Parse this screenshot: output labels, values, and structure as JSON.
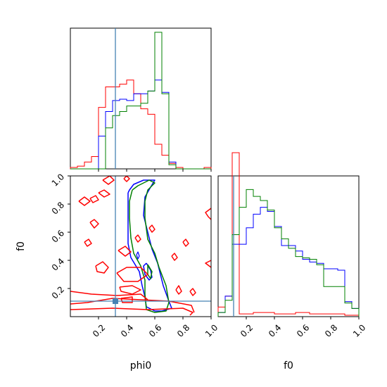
{
  "chart_data": {
    "type": "corner",
    "parameters": [
      "phi0",
      "f0"
    ],
    "truth": {
      "phi0": 0.32,
      "f0": 0.11,
      "color": "#4682b4"
    },
    "series_colors": {
      "red": "#ff0000",
      "blue": "#0000ff",
      "green": "#008000"
    },
    "hist_phi0": {
      "bin_edges": [
        0.0,
        0.05,
        0.1,
        0.15,
        0.2,
        0.25,
        0.3,
        0.35,
        0.4,
        0.45,
        0.5,
        0.55,
        0.6,
        0.65,
        0.7,
        0.75,
        0.8,
        0.85,
        0.9,
        0.95,
        1.0
      ],
      "series": [
        {
          "color": "red",
          "counts": [
            0.01,
            0.02,
            0.05,
            0.09,
            0.45,
            0.6,
            0.6,
            0.62,
            0.65,
            0.55,
            0.44,
            0.4,
            0.18,
            0.1,
            0.04,
            0.01,
            0.0,
            0.0,
            0.0,
            0.01
          ]
        },
        {
          "color": "blue",
          "counts": [
            0,
            0,
            0,
            0,
            0.24,
            0.42,
            0.5,
            0.51,
            0.5,
            0.55,
            0.55,
            0.57,
            0.65,
            0.56,
            0.05,
            0,
            0,
            0,
            0,
            0
          ]
        },
        {
          "color": "green",
          "counts": [
            0,
            0,
            0,
            0,
            0,
            0.3,
            0.39,
            0.42,
            0.46,
            0.46,
            0.48,
            0.57,
            1.0,
            0.55,
            0.03,
            0,
            0,
            0,
            0,
            0
          ]
        }
      ]
    },
    "hist_f0": {
      "bin_edges": [
        0.0,
        0.05,
        0.1,
        0.15,
        0.2,
        0.25,
        0.3,
        0.35,
        0.4,
        0.45,
        0.5,
        0.55,
        0.6,
        0.65,
        0.7,
        0.75,
        0.8,
        0.85,
        0.9,
        0.95,
        1.0
      ],
      "series": [
        {
          "color": "red",
          "counts": [
            0.07,
            0.15,
            1.2,
            0.02,
            0.02,
            0.03,
            0.03,
            0.03,
            0.02,
            0.02,
            0.02,
            0.03,
            0.03,
            0.02,
            0.02,
            0.02,
            0.02,
            0.02,
            0.01,
            0.01
          ]
        },
        {
          "color": "blue",
          "counts": [
            0.03,
            0.15,
            0.53,
            0.53,
            0.65,
            0.75,
            0.8,
            0.77,
            0.66,
            0.52,
            0.52,
            0.48,
            0.42,
            0.4,
            0.39,
            0.35,
            0.35,
            0.34,
            0.11,
            0.06
          ]
        },
        {
          "color": "green",
          "counts": [
            0.03,
            0.12,
            0.6,
            0.8,
            0.93,
            0.88,
            0.85,
            0.78,
            0.65,
            0.57,
            0.5,
            0.44,
            0.43,
            0.42,
            0.38,
            0.22,
            0.22,
            0.22,
            0.1,
            0.06
          ]
        }
      ]
    },
    "contours": [
      {
        "color": "blue",
        "width": 1.5,
        "points": [
          [
            0.41,
            0.88
          ],
          [
            0.42,
            0.9
          ],
          [
            0.45,
            0.94
          ],
          [
            0.52,
            0.97
          ],
          [
            0.6,
            0.97
          ],
          [
            0.57,
            0.92
          ],
          [
            0.53,
            0.85
          ],
          [
            0.52,
            0.72
          ],
          [
            0.55,
            0.6
          ],
          [
            0.58,
            0.48
          ],
          [
            0.62,
            0.38
          ],
          [
            0.66,
            0.22
          ],
          [
            0.7,
            0.11
          ],
          [
            0.72,
            0.06
          ],
          [
            0.65,
            0.04
          ],
          [
            0.6,
            0.04
          ],
          [
            0.54,
            0.07
          ],
          [
            0.53,
            0.14
          ],
          [
            0.51,
            0.22
          ],
          [
            0.49,
            0.32
          ],
          [
            0.43,
            0.42
          ],
          [
            0.41,
            0.52
          ],
          [
            0.41,
            0.65
          ],
          [
            0.41,
            0.78
          ],
          [
            0.41,
            0.88
          ]
        ]
      },
      {
        "color": "green",
        "width": 1.5,
        "points": [
          [
            0.44,
            0.9
          ],
          [
            0.48,
            0.93
          ],
          [
            0.56,
            0.97
          ],
          [
            0.6,
            0.95
          ],
          [
            0.55,
            0.9
          ],
          [
            0.53,
            0.82
          ],
          [
            0.53,
            0.7
          ],
          [
            0.55,
            0.55
          ],
          [
            0.6,
            0.45
          ],
          [
            0.63,
            0.35
          ],
          [
            0.68,
            0.22
          ],
          [
            0.7,
            0.1
          ],
          [
            0.68,
            0.04
          ],
          [
            0.6,
            0.03
          ],
          [
            0.54,
            0.05
          ],
          [
            0.53,
            0.16
          ],
          [
            0.53,
            0.26
          ],
          [
            0.5,
            0.36
          ],
          [
            0.45,
            0.45
          ],
          [
            0.43,
            0.56
          ],
          [
            0.42,
            0.7
          ],
          [
            0.42,
            0.82
          ],
          [
            0.44,
            0.9
          ]
        ]
      },
      {
        "color": "blue",
        "width": 1.5,
        "points": [
          [
            0.54,
            0.38
          ],
          [
            0.57,
            0.33
          ],
          [
            0.58,
            0.28
          ],
          [
            0.56,
            0.26
          ],
          [
            0.53,
            0.3
          ],
          [
            0.52,
            0.36
          ],
          [
            0.54,
            0.38
          ]
        ]
      },
      {
        "color": "green",
        "width": 1.5,
        "points": [
          [
            0.55,
            0.37
          ],
          [
            0.58,
            0.32
          ],
          [
            0.57,
            0.27
          ],
          [
            0.55,
            0.3
          ],
          [
            0.55,
            0.37
          ]
        ]
      },
      {
        "color": "red",
        "width": 1.5,
        "points": [
          [
            0.0,
            0.05
          ],
          [
            0.3,
            0.06
          ],
          [
            0.55,
            0.05
          ],
          [
            0.8,
            0.06
          ],
          [
            0.87,
            0.03
          ],
          [
            0.85,
            0.01
          ]
        ]
      },
      {
        "color": "red",
        "width": 1.5,
        "points": [
          [
            0.0,
            0.09
          ],
          [
            0.12,
            0.1
          ],
          [
            0.3,
            0.13
          ],
          [
            0.5,
            0.12
          ],
          [
            0.7,
            0.11
          ],
          [
            0.86,
            0.08
          ],
          [
            0.88,
            0.03
          ]
        ]
      },
      {
        "color": "red",
        "width": 1.5,
        "points": [
          [
            0.0,
            0.18
          ],
          [
            0.15,
            0.16
          ],
          [
            0.33,
            0.15
          ],
          [
            0.5,
            0.16
          ],
          [
            0.55,
            0.12
          ]
        ]
      },
      {
        "color": "red",
        "width": 1.5,
        "points": [
          [
            0.33,
            0.31
          ],
          [
            0.4,
            0.35
          ],
          [
            0.5,
            0.35
          ],
          [
            0.55,
            0.3
          ],
          [
            0.48,
            0.25
          ],
          [
            0.38,
            0.25
          ],
          [
            0.33,
            0.31
          ]
        ]
      },
      {
        "color": "red",
        "width": 1.5,
        "points": [
          [
            0.35,
            0.21
          ],
          [
            0.44,
            0.22
          ],
          [
            0.5,
            0.19
          ],
          [
            0.44,
            0.16
          ],
          [
            0.36,
            0.18
          ],
          [
            0.35,
            0.21
          ]
        ]
      },
      {
        "color": "red",
        "width": 1.5,
        "points": [
          [
            0.36,
            0.13
          ],
          [
            0.44,
            0.14
          ],
          [
            0.44,
            0.1
          ],
          [
            0.37,
            0.1
          ],
          [
            0.36,
            0.13
          ]
        ]
      },
      {
        "color": "red",
        "width": 1.5,
        "points": [
          [
            0.18,
            0.36
          ],
          [
            0.23,
            0.39
          ],
          [
            0.27,
            0.35
          ],
          [
            0.24,
            0.31
          ],
          [
            0.19,
            0.32
          ],
          [
            0.18,
            0.36
          ]
        ]
      },
      {
        "color": "red",
        "width": 1.5,
        "points": [
          [
            0.34,
            0.47
          ],
          [
            0.39,
            0.5
          ],
          [
            0.43,
            0.46
          ],
          [
            0.39,
            0.43
          ],
          [
            0.34,
            0.47
          ]
        ]
      },
      {
        "color": "red",
        "width": 1.5,
        "points": [
          [
            0.14,
            0.67
          ],
          [
            0.17,
            0.69
          ],
          [
            0.2,
            0.66
          ],
          [
            0.17,
            0.63
          ],
          [
            0.14,
            0.67
          ]
        ]
      },
      {
        "color": "red",
        "width": 1.5,
        "points": [
          [
            0.06,
            0.82
          ],
          [
            0.1,
            0.85
          ],
          [
            0.14,
            0.82
          ],
          [
            0.1,
            0.79
          ],
          [
            0.06,
            0.82
          ]
        ]
      },
      {
        "color": "red",
        "width": 1.5,
        "points": [
          [
            0.14,
            0.84
          ],
          [
            0.18,
            0.86
          ],
          [
            0.2,
            0.83
          ],
          [
            0.16,
            0.81
          ],
          [
            0.14,
            0.84
          ]
        ]
      },
      {
        "color": "red",
        "width": 1.5,
        "points": [
          [
            0.2,
            0.88
          ],
          [
            0.24,
            0.9
          ],
          [
            0.28,
            0.87
          ],
          [
            0.24,
            0.85
          ],
          [
            0.2,
            0.88
          ]
        ]
      },
      {
        "color": "red",
        "width": 1.5,
        "points": [
          [
            0.23,
            0.97
          ],
          [
            0.28,
            1.0
          ],
          [
            0.31,
            0.97
          ],
          [
            0.27,
            0.94
          ],
          [
            0.23,
            0.97
          ]
        ]
      },
      {
        "color": "red",
        "width": 1.5,
        "points": [
          [
            0.1,
            0.53
          ],
          [
            0.13,
            0.55
          ],
          [
            0.15,
            0.52
          ],
          [
            0.12,
            0.5
          ],
          [
            0.1,
            0.53
          ]
        ]
      },
      {
        "color": "red",
        "width": 1.5,
        "points": [
          [
            0.56,
            0.63
          ],
          [
            0.58,
            0.65
          ],
          [
            0.6,
            0.62
          ],
          [
            0.58,
            0.6
          ],
          [
            0.56,
            0.63
          ]
        ]
      },
      {
        "color": "red",
        "width": 1.5,
        "points": [
          [
            0.46,
            0.56
          ],
          [
            0.48,
            0.58
          ],
          [
            0.5,
            0.55
          ],
          [
            0.48,
            0.53
          ],
          [
            0.46,
            0.56
          ]
        ]
      },
      {
        "color": "red",
        "width": 1.5,
        "points": [
          [
            0.72,
            0.43
          ],
          [
            0.74,
            0.45
          ],
          [
            0.76,
            0.42
          ],
          [
            0.74,
            0.4
          ],
          [
            0.72,
            0.43
          ]
        ]
      },
      {
        "color": "red",
        "width": 1.5,
        "points": [
          [
            0.8,
            0.53
          ],
          [
            0.82,
            0.55
          ],
          [
            0.84,
            0.52
          ],
          [
            0.82,
            0.5
          ],
          [
            0.8,
            0.53
          ]
        ]
      },
      {
        "color": "red",
        "width": 1.5,
        "points": [
          [
            0.75,
            0.19
          ],
          [
            0.77,
            0.22
          ],
          [
            0.79,
            0.18
          ],
          [
            0.77,
            0.16
          ],
          [
            0.75,
            0.19
          ]
        ]
      },
      {
        "color": "red",
        "width": 1.5,
        "points": [
          [
            0.85,
            0.18
          ],
          [
            0.87,
            0.2
          ],
          [
            0.89,
            0.17
          ],
          [
            0.87,
            0.15
          ],
          [
            0.85,
            0.18
          ]
        ]
      },
      {
        "color": "red",
        "width": 1.5,
        "points": [
          [
            1.0,
            0.77
          ],
          [
            0.96,
            0.74
          ],
          [
            0.98,
            0.71
          ],
          [
            1.0,
            0.69
          ]
        ]
      },
      {
        "color": "red",
        "width": 1.5,
        "points": [
          [
            1.0,
            0.4
          ],
          [
            0.96,
            0.38
          ],
          [
            1.0,
            0.35
          ]
        ]
      },
      {
        "color": "red",
        "width": 1.5,
        "points": [
          [
            0.38,
            0.98
          ],
          [
            0.4,
            1.0
          ],
          [
            0.42,
            0.98
          ],
          [
            0.4,
            0.96
          ],
          [
            0.38,
            0.98
          ]
        ]
      },
      {
        "color": "blue",
        "width": 1.2,
        "points": [
          [
            0.47,
            0.44
          ],
          [
            0.48,
            0.46
          ],
          [
            0.49,
            0.43
          ],
          [
            0.48,
            0.41
          ],
          [
            0.47,
            0.44
          ]
        ]
      }
    ],
    "x_ticks_phi0": [
      "0.2",
      "0.4",
      "0.6",
      "0.8",
      "1.0"
    ],
    "y_ticks_f0": [
      "0.2",
      "0.4",
      "0.6",
      "0.8",
      "1.0"
    ],
    "x_ticks_f0": [
      "0.2",
      "0.4",
      "0.6",
      "0.8",
      "1.0"
    ],
    "xlabel_left": "phi0",
    "xlabel_right": "f0",
    "ylabel_left": "f0",
    "xlim": [
      0,
      1
    ],
    "ylim": [
      0,
      1
    ]
  }
}
